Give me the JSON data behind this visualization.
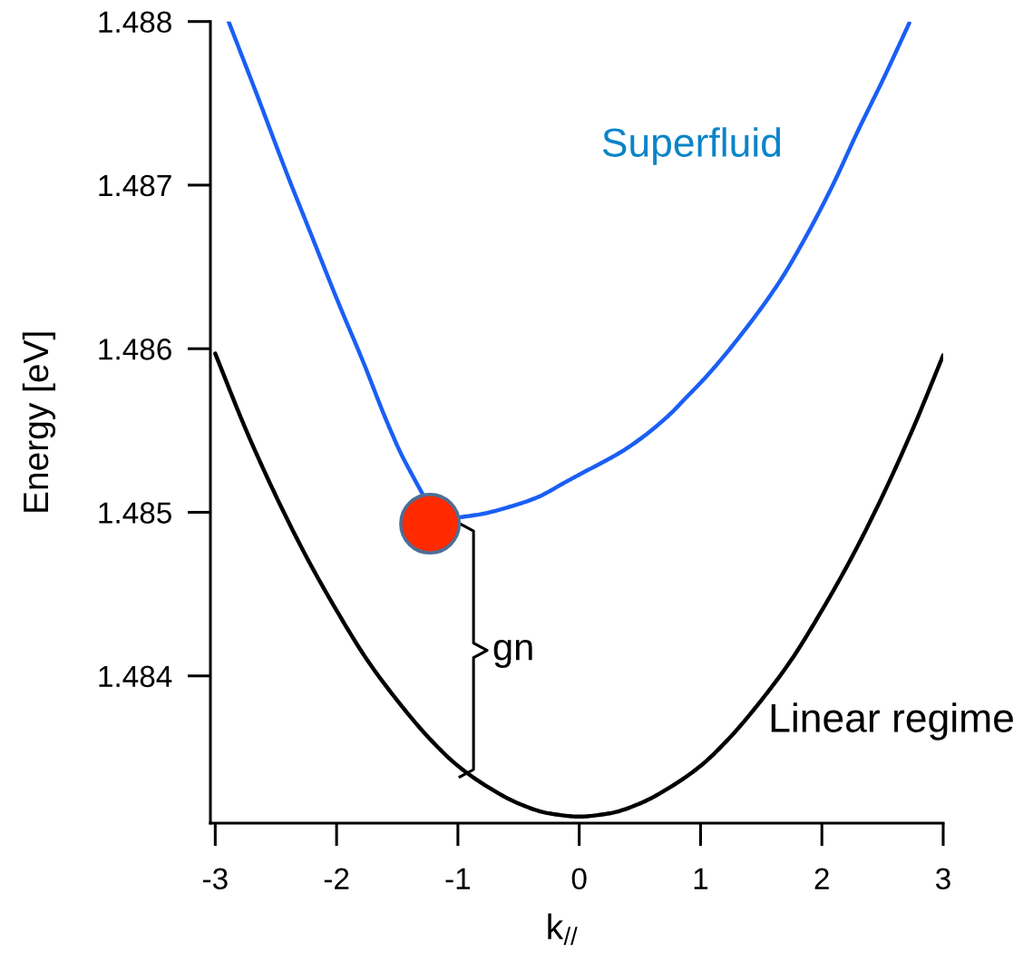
{
  "chart_data": {
    "type": "line",
    "xlabel": "k$_{//}$",
    "ylabel": "Energy [eV]",
    "xlim": [
      -3.04,
      3.0
    ],
    "ylim": [
      1.4831,
      1.488
    ],
    "xticks": [
      -3,
      -2,
      -1,
      0,
      1,
      2,
      3
    ],
    "yticks": [
      1.484,
      1.485,
      1.486,
      1.487,
      1.488
    ],
    "line_style": "solid",
    "series": [
      {
        "color": "#1a5ff5",
        "x": [
          -2.89,
          -2.65,
          -2.42,
          -2.2,
          -1.99,
          -1.77,
          -1.6,
          -1.47,
          -1.4,
          -1.29,
          -1.13,
          -0.98,
          -0.8,
          -0.59,
          -0.35,
          -0.1,
          0.0,
          0.39,
          0.72,
          0.88,
          1.06,
          1.36,
          1.66,
          1.85,
          2.09,
          2.29,
          2.52,
          2.72
        ],
        "values": [
          1.488,
          1.48754,
          1.48709,
          1.48668,
          1.48629,
          1.4859,
          1.48558,
          1.48536,
          1.48526,
          1.48511,
          null,
          1.48497,
          1.48499,
          1.48503,
          1.48509,
          1.48519,
          1.48523,
          1.48539,
          1.48558,
          1.4857,
          1.48584,
          1.48611,
          1.48642,
          1.48666,
          1.487,
          1.48732,
          1.48767,
          1.48799
        ]
      },
      {
        "color": "#000000",
        "x": [
          -3.0,
          -2.75,
          -2.5,
          -2.25,
          -2.0,
          -1.75,
          -1.5,
          -1.25,
          -1.0,
          -0.75,
          -0.5,
          -0.25,
          0.0,
          0.25,
          0.5,
          0.75,
          1.0,
          1.25,
          1.5,
          1.75,
          2.0,
          2.25,
          2.5,
          2.75,
          3.0
        ],
        "values": [
          1.48597,
          1.48551,
          1.4851,
          1.48473,
          1.4844,
          1.4841,
          1.48385,
          1.48363,
          1.48345,
          1.48332,
          1.48322,
          1.48316,
          1.48314,
          1.48316,
          1.48322,
          1.48332,
          1.48345,
          1.48363,
          1.48385,
          1.4841,
          1.4844,
          1.48473,
          1.4851,
          1.48551,
          1.48596
        ]
      },
      {
        "type": "scatter",
        "marker": "circle",
        "color": "#ff2a00",
        "x": [
          -1.23
        ],
        "values": [
          1.48493
        ]
      }
    ],
    "annotations": [
      "Superfluid",
      "Linear regime",
      "gn"
    ]
  }
}
